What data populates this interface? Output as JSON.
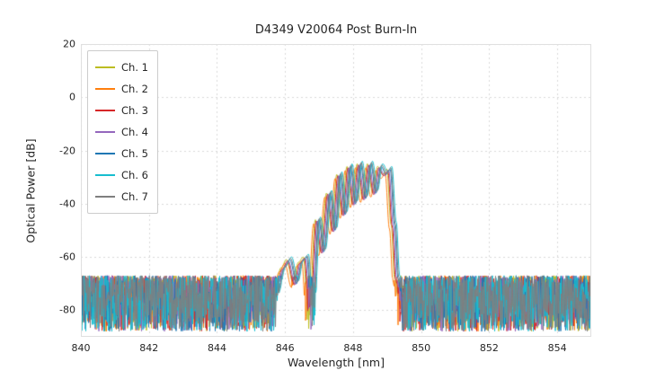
{
  "chart_data": {
    "type": "line",
    "title": "D4349 V20064 Post Burn-In",
    "xlabel": "Wavelength [nm]",
    "ylabel": "Optical Power [dB]",
    "xlim": [
      840,
      855
    ],
    "ylim": [
      -90,
      20
    ],
    "xticks": [
      840,
      842,
      844,
      846,
      848,
      850,
      852,
      854
    ],
    "yticks": [
      20,
      0,
      -20,
      -40,
      -60,
      -80
    ],
    "grid": true,
    "grid_color": "#d9d9d9",
    "legend_position": "upper left",
    "noise_floor": {
      "top_dB": -67,
      "bottom_dB": -88
    },
    "passband_envelope": [
      [
        845.7,
        -75
      ],
      [
        845.95,
        -64
      ],
      [
        846.1,
        -61
      ],
      [
        846.3,
        -70
      ],
      [
        846.45,
        -62
      ],
      [
        846.6,
        -60
      ],
      [
        846.75,
        -87
      ],
      [
        846.95,
        -46
      ],
      [
        847.1,
        -58
      ],
      [
        847.28,
        -36
      ],
      [
        847.43,
        -50
      ],
      [
        847.58,
        -29
      ],
      [
        847.73,
        -44
      ],
      [
        847.88,
        -26
      ],
      [
        848.03,
        -40
      ],
      [
        848.18,
        -25
      ],
      [
        848.33,
        -38
      ],
      [
        848.48,
        -25
      ],
      [
        848.63,
        -36
      ],
      [
        848.78,
        -26
      ],
      [
        848.93,
        -29
      ],
      [
        849.05,
        -27
      ],
      [
        849.18,
        -48
      ],
      [
        849.28,
        -68
      ],
      [
        849.4,
        -76
      ]
    ],
    "series": [
      {
        "name": "Ch. 1",
        "color": "#bcbd22",
        "x_offset": -0.06,
        "y_offset": 0
      },
      {
        "name": "Ch. 2",
        "color": "#ff7f0e",
        "x_offset": -0.11,
        "y_offset": -1.5
      },
      {
        "name": "Ch. 3",
        "color": "#d62728",
        "x_offset": -0.03,
        "y_offset": -0.5
      },
      {
        "name": "Ch. 4",
        "color": "#9467bd",
        "x_offset": 0.0,
        "y_offset": -0.5
      },
      {
        "name": "Ch. 5",
        "color": "#1f77b4",
        "x_offset": 0.04,
        "y_offset": 0
      },
      {
        "name": "Ch. 6",
        "color": "#17becf",
        "x_offset": 0.09,
        "y_offset": 1.0
      },
      {
        "name": "Ch. 7",
        "color": "#7f7f7f",
        "x_offset": 0.06,
        "y_offset": 0.5
      }
    ]
  }
}
